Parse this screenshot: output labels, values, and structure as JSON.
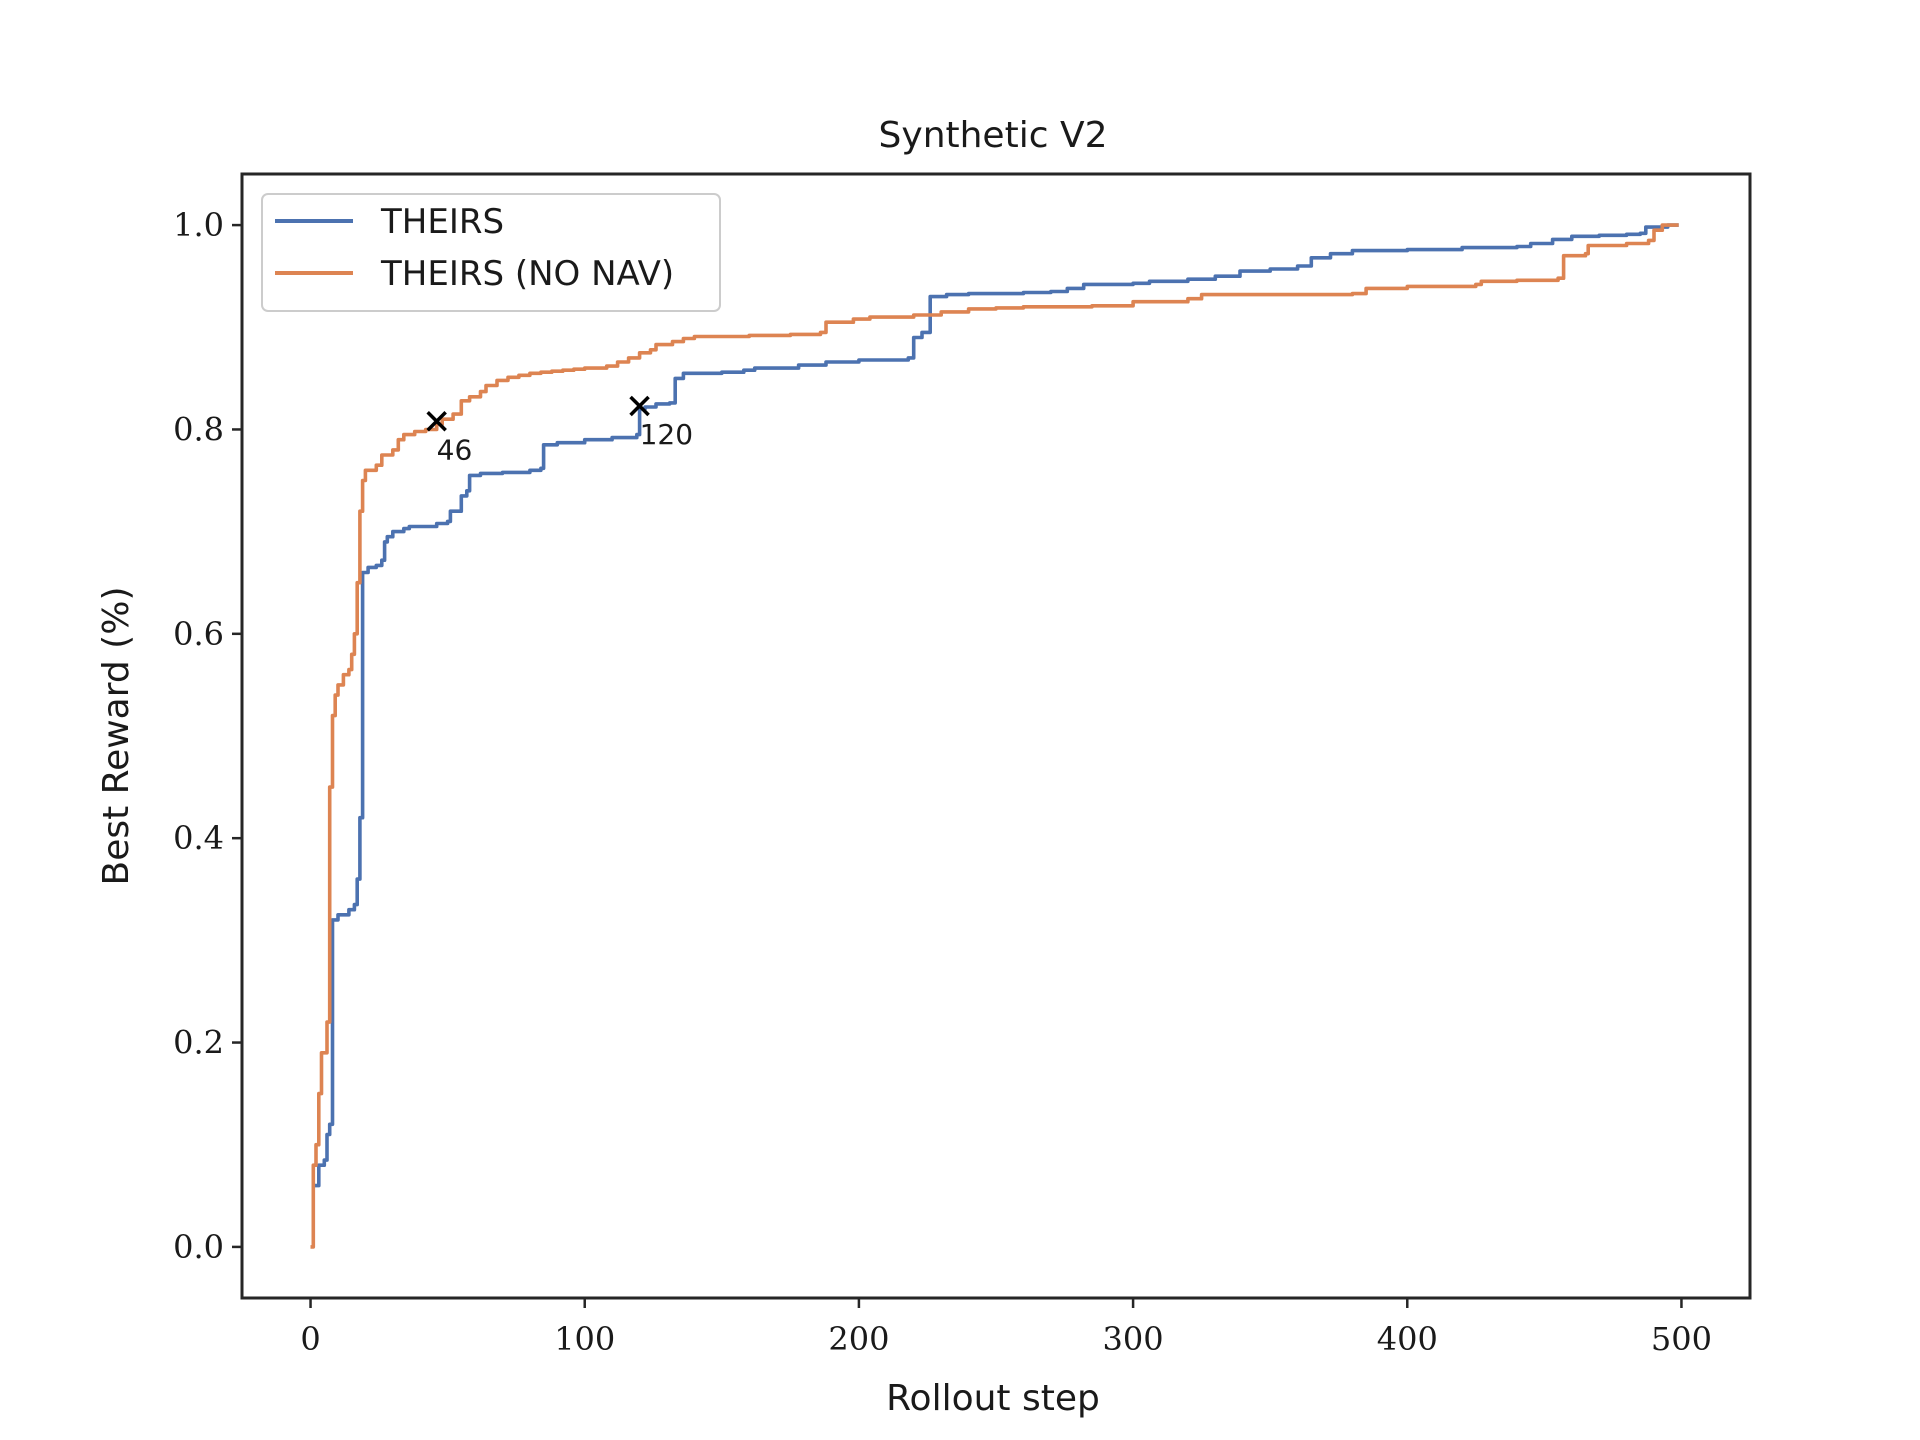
{
  "chart_data": {
    "type": "line",
    "title": "Synthetic V2",
    "xlabel": "Rollout step",
    "ylabel": "Best Reward (%)",
    "xlim": [
      -25,
      525
    ],
    "ylim": [
      -0.05,
      1.05
    ],
    "xticks": [
      0,
      100,
      200,
      300,
      400,
      500
    ],
    "xtick_labels": [
      "0",
      "100",
      "200",
      "300",
      "400",
      "500"
    ],
    "yticks": [
      0.0,
      0.2,
      0.4,
      0.6,
      0.8,
      1.0
    ],
    "ytick_labels": [
      "0.0",
      "0.2",
      "0.4",
      "0.6",
      "0.8",
      "1.0"
    ],
    "grid": false,
    "legend_position": "upper-left",
    "series": [
      {
        "name": "THEIRS",
        "color": "#4c72b0",
        "points": [
          [
            1,
            0.06
          ],
          [
            3,
            0.08
          ],
          [
            5,
            0.085
          ],
          [
            6,
            0.11
          ],
          [
            7,
            0.12
          ],
          [
            8,
            0.32
          ],
          [
            10,
            0.325
          ],
          [
            14,
            0.33
          ],
          [
            16,
            0.335
          ],
          [
            17,
            0.36
          ],
          [
            18,
            0.42
          ],
          [
            19,
            0.66
          ],
          [
            21,
            0.665
          ],
          [
            24,
            0.667
          ],
          [
            26,
            0.672
          ],
          [
            27,
            0.69
          ],
          [
            28,
            0.695
          ],
          [
            30,
            0.7
          ],
          [
            34,
            0.703
          ],
          [
            36,
            0.705
          ],
          [
            46,
            0.708
          ],
          [
            50,
            0.71
          ],
          [
            51,
            0.72
          ],
          [
            54,
            0.72
          ],
          [
            55,
            0.735
          ],
          [
            57,
            0.74
          ],
          [
            58,
            0.755
          ],
          [
            62,
            0.757
          ],
          [
            70,
            0.758
          ],
          [
            78,
            0.758
          ],
          [
            80,
            0.76
          ],
          [
            84,
            0.762
          ],
          [
            85,
            0.785
          ],
          [
            90,
            0.787
          ],
          [
            100,
            0.79
          ],
          [
            110,
            0.792
          ],
          [
            119,
            0.795
          ],
          [
            120,
            0.82
          ],
          [
            122,
            0.822
          ],
          [
            126,
            0.825
          ],
          [
            131,
            0.826
          ],
          [
            133,
            0.85
          ],
          [
            136,
            0.855
          ],
          [
            150,
            0.856
          ],
          [
            158,
            0.858
          ],
          [
            162,
            0.86
          ],
          [
            178,
            0.863
          ],
          [
            188,
            0.866
          ],
          [
            200,
            0.868
          ],
          [
            215,
            0.868
          ],
          [
            218,
            0.87
          ],
          [
            220,
            0.89
          ],
          [
            223,
            0.895
          ],
          [
            226,
            0.93
          ],
          [
            232,
            0.932
          ],
          [
            240,
            0.933
          ],
          [
            260,
            0.934
          ],
          [
            270,
            0.935
          ],
          [
            276,
            0.938
          ],
          [
            282,
            0.942
          ],
          [
            300,
            0.943
          ],
          [
            306,
            0.945
          ],
          [
            320,
            0.947
          ],
          [
            330,
            0.95
          ],
          [
            339,
            0.955
          ],
          [
            350,
            0.957
          ],
          [
            360,
            0.96
          ],
          [
            365,
            0.968
          ],
          [
            372,
            0.972
          ],
          [
            380,
            0.975
          ],
          [
            400,
            0.976
          ],
          [
            420,
            0.978
          ],
          [
            440,
            0.979
          ],
          [
            445,
            0.982
          ],
          [
            453,
            0.986
          ],
          [
            460,
            0.989
          ],
          [
            470,
            0.99
          ],
          [
            480,
            0.991
          ],
          [
            485,
            0.992
          ],
          [
            487,
            0.998
          ],
          [
            495,
            1.0
          ],
          [
            499,
            1.0
          ]
        ]
      },
      {
        "name": "THEIRS (NO NAV)",
        "color": "#dd8452",
        "points": [
          [
            0,
            0.0
          ],
          [
            1,
            0.08
          ],
          [
            2,
            0.1
          ],
          [
            3,
            0.15
          ],
          [
            4,
            0.19
          ],
          [
            6,
            0.22
          ],
          [
            7,
            0.45
          ],
          [
            8,
            0.52
          ],
          [
            9,
            0.54
          ],
          [
            10,
            0.55
          ],
          [
            12,
            0.56
          ],
          [
            14,
            0.565
          ],
          [
            15,
            0.58
          ],
          [
            16,
            0.6
          ],
          [
            17,
            0.65
          ],
          [
            18,
            0.72
          ],
          [
            19,
            0.75
          ],
          [
            20,
            0.76
          ],
          [
            24,
            0.765
          ],
          [
            26,
            0.775
          ],
          [
            30,
            0.78
          ],
          [
            32,
            0.79
          ],
          [
            34,
            0.795
          ],
          [
            38,
            0.798
          ],
          [
            42,
            0.8
          ],
          [
            46,
            0.805
          ],
          [
            48,
            0.81
          ],
          [
            52,
            0.815
          ],
          [
            55,
            0.828
          ],
          [
            58,
            0.832
          ],
          [
            62,
            0.837
          ],
          [
            64,
            0.843
          ],
          [
            68,
            0.848
          ],
          [
            72,
            0.851
          ],
          [
            76,
            0.853
          ],
          [
            80,
            0.855
          ],
          [
            84,
            0.856
          ],
          [
            88,
            0.857
          ],
          [
            92,
            0.858
          ],
          [
            96,
            0.859
          ],
          [
            100,
            0.86
          ],
          [
            108,
            0.862
          ],
          [
            112,
            0.866
          ],
          [
            116,
            0.87
          ],
          [
            120,
            0.875
          ],
          [
            124,
            0.878
          ],
          [
            126,
            0.883
          ],
          [
            132,
            0.886
          ],
          [
            136,
            0.889
          ],
          [
            140,
            0.891
          ],
          [
            160,
            0.892
          ],
          [
            175,
            0.893
          ],
          [
            186,
            0.895
          ],
          [
            188,
            0.905
          ],
          [
            198,
            0.908
          ],
          [
            204,
            0.91
          ],
          [
            220,
            0.912
          ],
          [
            230,
            0.915
          ],
          [
            240,
            0.918
          ],
          [
            250,
            0.919
          ],
          [
            260,
            0.92
          ],
          [
            285,
            0.921
          ],
          [
            300,
            0.925
          ],
          [
            320,
            0.928
          ],
          [
            325,
            0.932
          ],
          [
            380,
            0.933
          ],
          [
            385,
            0.938
          ],
          [
            400,
            0.94
          ],
          [
            425,
            0.942
          ],
          [
            427,
            0.945
          ],
          [
            440,
            0.946
          ],
          [
            455,
            0.948
          ],
          [
            457,
            0.97
          ],
          [
            465,
            0.972
          ],
          [
            466,
            0.98
          ],
          [
            480,
            0.982
          ],
          [
            488,
            0.985
          ],
          [
            490,
            0.995
          ],
          [
            493,
            1.0
          ],
          [
            499,
            1.0
          ]
        ]
      }
    ],
    "annotations": [
      {
        "marker": "x",
        "x": 46,
        "y": 0.808,
        "text": "46"
      },
      {
        "marker": "x",
        "x": 120,
        "y": 0.823,
        "text": "120"
      }
    ]
  }
}
